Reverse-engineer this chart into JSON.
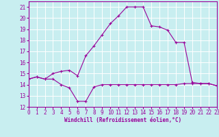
{
  "xlabel": "Windchill (Refroidissement éolien,°C)",
  "xlim": [
    0,
    23
  ],
  "ylim": [
    12,
    21.5
  ],
  "xticks": [
    0,
    1,
    2,
    3,
    4,
    5,
    6,
    7,
    8,
    9,
    10,
    11,
    12,
    13,
    14,
    15,
    16,
    17,
    18,
    19,
    20,
    21,
    22,
    23
  ],
  "yticks": [
    12,
    13,
    14,
    15,
    16,
    17,
    18,
    19,
    20,
    21
  ],
  "background_color": "#c8eef0",
  "grid_color": "#ffffff",
  "line_color": "#990099",
  "line1_x": [
    0,
    1,
    2,
    3,
    4,
    5,
    6,
    7,
    8,
    9,
    10,
    11,
    12,
    13,
    14,
    15,
    16,
    17,
    18,
    19,
    20,
    21,
    22,
    23
  ],
  "line1_y": [
    14.5,
    14.7,
    14.5,
    14.5,
    14.0,
    13.7,
    12.5,
    12.5,
    13.8,
    14.0,
    14.0,
    14.0,
    14.0,
    14.0,
    14.0,
    14.0,
    14.0,
    14.0,
    14.0,
    14.1,
    14.1,
    14.1,
    14.1,
    13.9
  ],
  "line2_x": [
    0,
    1,
    2,
    3,
    4,
    5,
    6,
    7,
    8,
    9,
    10,
    11,
    12,
    13,
    14,
    15,
    16,
    17,
    18,
    19,
    20,
    21,
    22,
    23
  ],
  "line2_y": [
    14.5,
    14.7,
    14.5,
    15.0,
    15.2,
    15.3,
    14.8,
    16.6,
    17.5,
    18.5,
    19.5,
    20.2,
    21.0,
    21.0,
    21.0,
    19.3,
    19.2,
    18.9,
    17.8,
    17.8,
    14.2,
    14.1,
    14.1,
    13.9
  ],
  "label_fontsize": 5.5,
  "tick_fontsize": 5.5
}
